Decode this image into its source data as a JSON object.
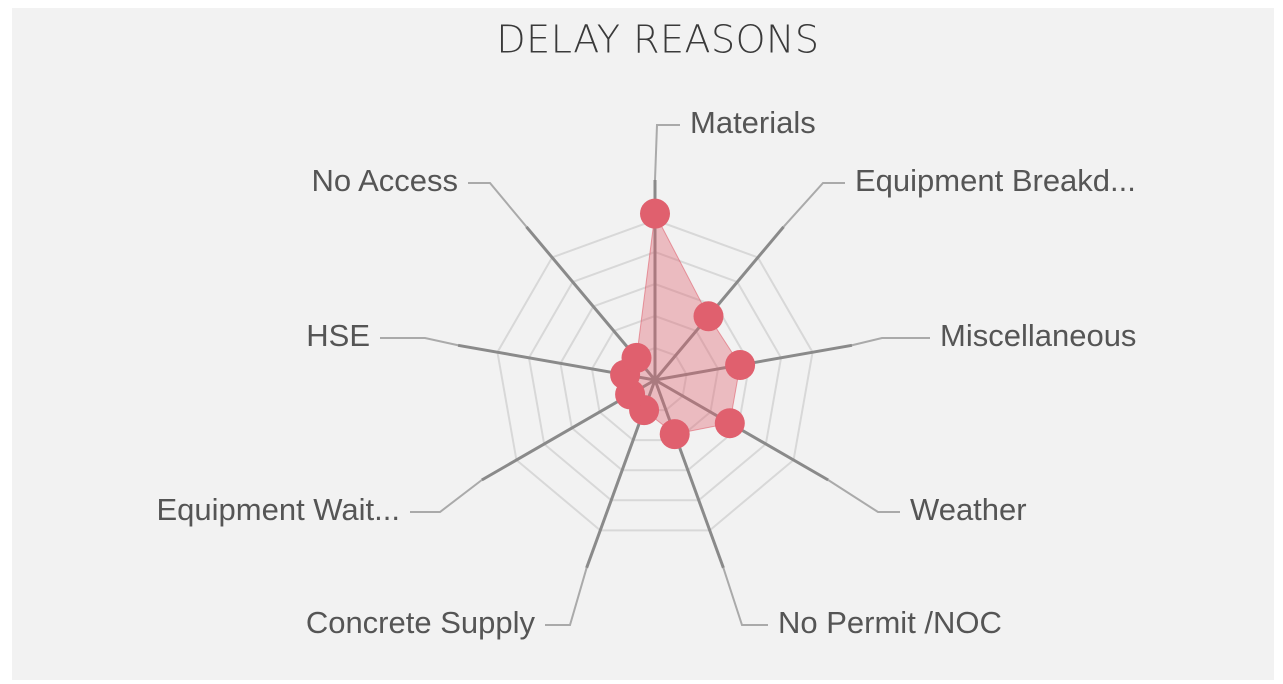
{
  "chart_data": {
    "type": "radar",
    "title": "DELAY REASONS",
    "categories": [
      "Materials",
      "Equipment Breakd...",
      "Miscellaneous",
      "Weather",
      "No Permit /NOC",
      "Concrete Supply",
      "Equipment Wait...",
      "HSE",
      "No Access"
    ],
    "values": [
      5.2,
      2.6,
      2.7,
      2.7,
      1.8,
      1.0,
      0.9,
      0.95,
      0.9
    ],
    "color": "#e0606e",
    "rlim": [
      0,
      5
    ],
    "rticks": [
      1,
      2,
      3,
      4,
      5
    ],
    "grid": true
  }
}
